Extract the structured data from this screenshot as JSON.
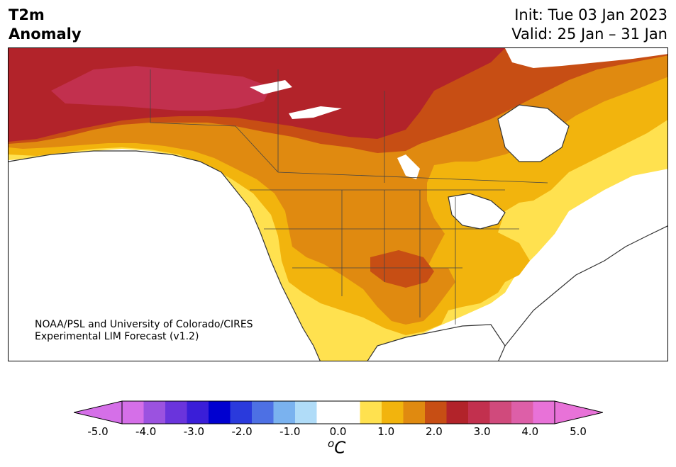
{
  "title": {
    "left_line1": "T2m",
    "left_line2": "Anomaly",
    "init": "Init: Tue 03 Jan 2023",
    "valid": "Valid: 25 Jan – 31 Jan"
  },
  "credit": {
    "line1": "NOAA/PSL and University of Colorado/CIRES",
    "line2": "Experimental LIM Forecast (v1.2)"
  },
  "colorbar": {
    "unit_base": "C",
    "unit_sup": "o",
    "ticks": [
      "-5.0",
      "-4.0",
      "-3.0",
      "-2.0",
      "-1.0",
      "0.0",
      "1.0",
      "2.0",
      "3.0",
      "4.0",
      "5.0"
    ],
    "colors": [
      "#d56fe8",
      "#9b52e0",
      "#6a34dc",
      "#3a1ed8",
      "#0000d0",
      "#2a3adc",
      "#4d70e4",
      "#7ab2ef",
      "#b0dcf8",
      "#ffffff",
      "#ffffff",
      "#ffe14f",
      "#f2b40d",
      "#e08a10",
      "#c74e14",
      "#b2232a",
      "#c2304e",
      "#d04a7c",
      "#dd5fa8",
      "#e872d8"
    ],
    "under_color": "#d56fe8",
    "over_color": "#e872d8"
  },
  "map": {
    "region": "North America",
    "fill_colors": {
      "0-1": "#ffe14f",
      "1-1.5": "#f2b40d",
      "1.5-2": "#e08a10",
      "2-2.5": "#c74e14",
      "2.5-3": "#b2232a",
      "3-3.5": "#c2304e",
      "coast": "#333333",
      "land_neutral": "#ffffff"
    }
  }
}
